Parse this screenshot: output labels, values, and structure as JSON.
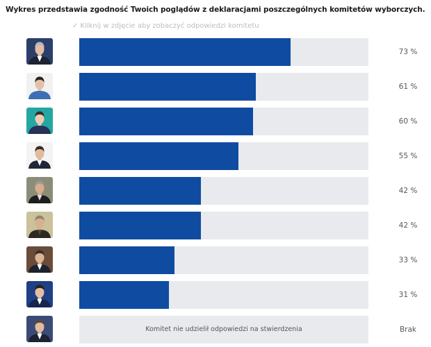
{
  "title": "Wykres przedstawia zgodność Twoich poglądów z deklaracjami poszczególnych komitetów wyborczych.",
  "hint": {
    "check_icon": "✓",
    "text": "Kliknij w zdjęcie aby zobaczyć odpowiedzi komitetu"
  },
  "colors": {
    "bar_fill": "#0f4ca1",
    "bar_track": "#e8eaed"
  },
  "committees": [
    {
      "value": 73,
      "label": "73 %",
      "portrait": "candidate-1-portrait",
      "bg": "#2b3f6b",
      "suit": "#1c2433",
      "skin": "#e3bda3",
      "hair": "#b8b8b8",
      "shirt": "#ffffff"
    },
    {
      "value": 61,
      "label": "61 %",
      "portrait": "candidate-2-portrait",
      "bg": "#f1f1f1",
      "suit": "#3d6fb5",
      "skin": "#e5c1a7",
      "hair": "#2a2420",
      "shirt": "#3d6fb5"
    },
    {
      "value": 60,
      "label": "60 %",
      "portrait": "candidate-3-portrait",
      "bg": "#23a7a2",
      "suit": "#27315a",
      "skin": "#edcbb5",
      "hair": "#3a2c22",
      "shirt": "#27315a"
    },
    {
      "value": 55,
      "label": "55 %",
      "portrait": "candidate-4-portrait",
      "bg": "#f3f3f3",
      "suit": "#1f2738",
      "skin": "#e1bb9c",
      "hair": "#3a2b20",
      "shirt": "#ffffff"
    },
    {
      "value": 42,
      "label": "42 %",
      "portrait": "candidate-5-portrait",
      "bg": "#8c8d78",
      "suit": "#1e1e1e",
      "skin": "#d9ac8c",
      "hair": "#9b9b9b",
      "shirt": "#dcdcdc"
    },
    {
      "value": 42,
      "label": "42 %",
      "portrait": "candidate-6-portrait",
      "bg": "#c9c29a",
      "suit": "#2d2a24",
      "skin": "#d8b08f",
      "hair": "#8e8674",
      "shirt": "#4c4a3d"
    },
    {
      "value": 33,
      "label": "33 %",
      "portrait": "candidate-7-portrait",
      "bg": "#6b4c3a",
      "suit": "#1d2230",
      "skin": "#d9b495",
      "hair": "#3b302a",
      "shirt": "#ffffff"
    },
    {
      "value": 31,
      "label": "31 %",
      "portrait": "candidate-8-portrait",
      "bg": "#1f3f86",
      "suit": "#15264d",
      "skin": "#e3bfa1",
      "hair": "#2a2018",
      "shirt": "#ffffff"
    },
    {
      "value": null,
      "label": "Brak",
      "message": "Komitet nie udzielił odpowiedzi na stwierdzenia",
      "portrait": "candidate-9-portrait",
      "bg": "#3a4c75",
      "suit": "#1b2233",
      "skin": "#e0bb9e",
      "hair": "#5a4a3e",
      "shirt": "#ffffff"
    }
  ]
}
